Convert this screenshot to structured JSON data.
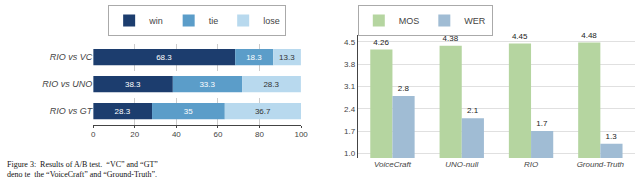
{
  "chart_data": [
    {
      "type": "bar",
      "orientation": "horizontal",
      "stacked": true,
      "categories": [
        "RIO vs VC",
        "RIO vs UNO",
        "RIO vs GT"
      ],
      "series": [
        {
          "name": "win",
          "color": "#1c3d6e",
          "values": [
            68.3,
            38.3,
            28.3
          ]
        },
        {
          "name": "tie",
          "color": "#5b9dc9",
          "values": [
            18.3,
            33.3,
            35.0
          ]
        },
        {
          "name": "lose",
          "color": "#b8d9ee",
          "values": [
            13.3,
            28.3,
            36.7
          ]
        }
      ],
      "xlim": [
        0,
        100
      ],
      "xticks": [
        0,
        20,
        40,
        60,
        80,
        100
      ],
      "grid": true,
      "legend": "top",
      "data_labels": true,
      "annotations": [
        "Figure 3:  Results of A/B test.  “VC” and “GT”\ndeno te  the “VoiceCraft” and “Ground-Truth”."
      ]
    },
    {
      "type": "bar",
      "categories": [
        "VoiceCraft",
        "UNO-null",
        "RIO",
        "Ground-Truth"
      ],
      "series": [
        {
          "name": "MOS",
          "color": "#b5d5a0",
          "values": [
            4.26,
            4.38,
            4.45,
            4.48
          ]
        },
        {
          "name": "WER",
          "color": "#a0bcd4",
          "values": [
            2.8,
            2.1,
            1.7,
            1.3
          ]
        }
      ],
      "ylim": [
        0.85,
        4.72
      ],
      "yticks": [
        {
          "value": 1.0,
          "label": "1.0"
        },
        1.7,
        2.4,
        3.1,
        3.8,
        4.5
      ],
      "grid": true,
      "legend": "top-left",
      "data_labels": true
    }
  ]
}
